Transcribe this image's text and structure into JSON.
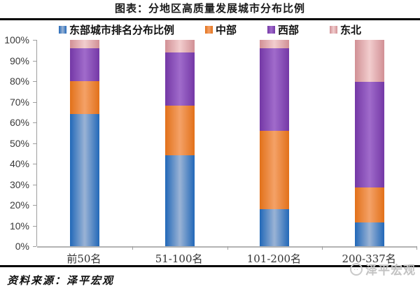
{
  "title": "图表：分地区高质量发展城市分布比例",
  "source_note": "资料来源：泽平宏观",
  "watermark": "泽平宏观",
  "colors": {
    "rule_line": "#000000",
    "axis_line": "#9e9e9e",
    "baseline": "#b3b3b3",
    "text": "#333333",
    "watermark_gray": "#c3c3c3"
  },
  "chart_data": {
    "type": "bar",
    "subtype": "stacked-100-percent",
    "title": "图表：分地区高质量发展城市分布比例",
    "categories": [
      "前50名",
      "51-100名",
      "101-200名",
      "200-337名"
    ],
    "series": [
      {
        "name": "东部城市排名分布比例",
        "values": [
          64,
          44,
          18,
          11.7
        ],
        "color_edge": "#2268B8",
        "color_center": "#9AB3D5"
      },
      {
        "name": "中部",
        "values": [
          16,
          24,
          38,
          16.8
        ],
        "color_edge": "#E2711A",
        "color_center": "#F4A167"
      },
      {
        "name": "西部",
        "values": [
          16,
          26,
          40,
          51.1
        ],
        "color_edge": "#7438A6",
        "color_center": "#A06BCB"
      },
      {
        "name": "东北",
        "values": [
          4,
          6,
          4,
          20.4
        ],
        "color_edge": "#D19095",
        "color_center": "#F2CDCE"
      }
    ],
    "y_ticks": [
      "0%",
      "10%",
      "20%",
      "30%",
      "40%",
      "50%",
      "60%",
      "70%",
      "80%",
      "90%",
      "100%"
    ],
    "ylim": [
      0,
      100
    ],
    "grid": false,
    "legend_position": "top",
    "xlabel": "",
    "ylabel": ""
  }
}
